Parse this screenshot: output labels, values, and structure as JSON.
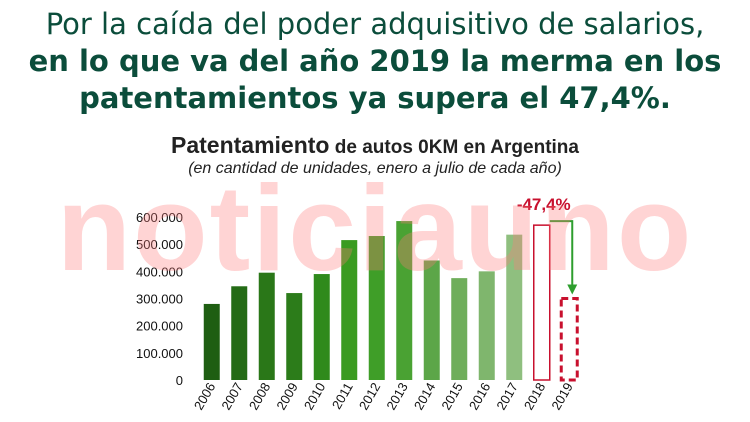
{
  "headline": {
    "line1": "Por la caída del poder adquisitivo de salarios,",
    "line2": "en lo que va del año 2019 la merma en los",
    "line3": "patentamientos ya supera el 47,4%."
  },
  "watermark": "noticiauno",
  "chart_data": {
    "type": "bar",
    "title_main": "Patentamiento",
    "title_rest": " de autos 0KM en Argentina",
    "subtitle": "(en cantidad de unidades, enero a julio de cada año)",
    "categories": [
      "2006",
      "2007",
      "2008",
      "2009",
      "2010",
      "2011",
      "2012",
      "2013",
      "2014",
      "2015",
      "2016",
      "2017",
      "2018",
      "2019"
    ],
    "values": [
      280000,
      345000,
      395000,
      320000,
      390000,
      515000,
      530000,
      585000,
      440000,
      375000,
      400000,
      535000,
      570000,
      300000
    ],
    "ylim": [
      0,
      600000
    ],
    "yticks": [
      "0",
      "100.000",
      "200.000",
      "300.000",
      "400.000",
      "500.000",
      "600.000"
    ],
    "annotation": "-47,4%",
    "colors": {
      "bars": [
        "#1e5e12",
        "#246b16",
        "#2a7718",
        "#2c7c1a",
        "#2f8a1c",
        "#3a9b20",
        "#3f9e28",
        "#4aa233",
        "#5ca648",
        "#6fae5b",
        "#7fb66d",
        "#8fbf7f",
        "#ffffff",
        "#ffffff"
      ],
      "highlight": "#c8102e",
      "arrow": "#2e9e2e"
    }
  }
}
